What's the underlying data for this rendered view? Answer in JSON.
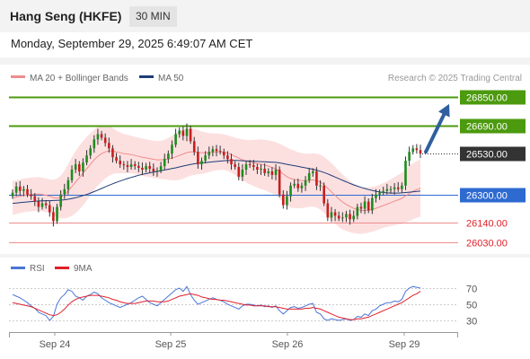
{
  "header": {
    "title": "Hang Seng (HKFE)",
    "timeframe": "30 MIN"
  },
  "datetime": "Monday, September 29, 2025 6:49:07 AM CET",
  "legend": {
    "ma20": "MA 20 + Bollinger Bands",
    "ma50": "MA 50",
    "copyright": "Research © 2025 Trading Central"
  },
  "rsi_legend": {
    "rsi": "RSI",
    "ma9": "9MA"
  },
  "colors": {
    "resistance": "#4c9a0e",
    "support": "#f08c8c",
    "pivot": "#2e6ad0",
    "last": "#333333",
    "candle_up": "#1e8c1e",
    "candle_down": "#c81e1e",
    "bollinger": "#fbd5d5",
    "ma50": "#1e3c78",
    "rsi": "#4a76d6",
    "rsi_ma": "#e0202a",
    "arrow": "#2f5f9e"
  },
  "chart_data": [
    {
      "type": "candlestick",
      "title": "Hang Seng (HKFE)",
      "x_labels": [
        "Sep 24",
        "Sep 25",
        "Sep 26",
        "Sep 29"
      ],
      "ylim": [
        25980,
        26900
      ],
      "levels": [
        {
          "value": 26850.0,
          "label": "26850.00",
          "kind": "resistance"
        },
        {
          "value": 26690.0,
          "label": "26690.00",
          "kind": "resistance"
        },
        {
          "value": 26530.0,
          "label": "26530.00",
          "kind": "last"
        },
        {
          "value": 26300.0,
          "label": "26300.00",
          "kind": "pivot"
        },
        {
          "value": 26140.0,
          "label": "26140.00",
          "kind": "support"
        },
        {
          "value": 26030.0,
          "label": "26030.00",
          "kind": "support"
        }
      ],
      "closes": [
        26310,
        26345,
        26320,
        26330,
        26300,
        26290,
        26260,
        26230,
        26250,
        26240,
        26200,
        26150,
        26230,
        26300,
        26330,
        26380,
        26440,
        26470,
        26430,
        26480,
        26520,
        26560,
        26610,
        26640,
        26620,
        26590,
        26560,
        26510,
        26490,
        26470,
        26465,
        26455,
        26470,
        26460,
        26450,
        26440,
        26460,
        26445,
        26430,
        26435,
        26460,
        26500,
        26530,
        26580,
        26640,
        26660,
        26630,
        26670,
        26600,
        26540,
        26470,
        26490,
        26520,
        26540,
        26555,
        26545,
        26540,
        26520,
        26500,
        26470,
        26455,
        26400,
        26440,
        26470,
        26465,
        26455,
        26440,
        26445,
        26420,
        26430,
        26410,
        26440,
        26300,
        26240,
        26290,
        26350,
        26360,
        26335,
        26350,
        26380,
        26420,
        26430,
        26350,
        26350,
        26250,
        26170,
        26200,
        26180,
        26165,
        26170,
        26190,
        26160,
        26180,
        26230,
        26220,
        26260,
        26210,
        26280,
        26300,
        26310,
        26320,
        26330,
        26330,
        26340,
        26330,
        26350,
        26490,
        26540,
        26560,
        26550,
        26530
      ],
      "ma20": [
        26280,
        26285,
        26290,
        26295,
        26298,
        26300,
        26302,
        26303,
        26300,
        26296,
        26290,
        26283,
        26280,
        26285,
        26300,
        26320,
        26345,
        26370,
        26395,
        26420,
        26445,
        26470,
        26495,
        26515,
        26530,
        26540,
        26545,
        26545,
        26540,
        26535,
        26530,
        26528,
        26525,
        26520,
        26515,
        26510,
        26506,
        26502,
        26498,
        26495,
        26495,
        26497,
        26500,
        26505,
        26512,
        26520,
        26528,
        26536,
        26540,
        26540,
        26538,
        26535,
        26535,
        26536,
        26538,
        26540,
        26540,
        26538,
        26533,
        26525,
        26515,
        26505,
        26495,
        26488,
        26482,
        26478,
        26474,
        26470,
        26466,
        26460,
        26452,
        26444,
        26430,
        26415,
        26400,
        26390,
        26385,
        26380,
        26378,
        26378,
        26380,
        26382,
        26378,
        26370,
        26355,
        26335,
        26315,
        26295,
        26275,
        26258,
        26244,
        26232,
        26222,
        26215,
        26210,
        26210,
        26212,
        26216,
        26222,
        26230,
        26238,
        26246,
        26254,
        26262,
        26270,
        26278,
        26292,
        26306,
        26318,
        26328,
        26336
      ],
      "ma50": [
        26250,
        26252,
        26254,
        26256,
        26258,
        26260,
        26262,
        26263,
        26264,
        26265,
        26265,
        26266,
        26267,
        26268,
        26270,
        26273,
        26277,
        26282,
        26288,
        26294,
        26300,
        26308,
        26316,
        26325,
        26334,
        26343,
        26352,
        26360,
        26368,
        26376,
        26383,
        26390,
        26396,
        26402,
        26408,
        26413,
        26418,
        26422,
        26426,
        26430,
        26434,
        26438,
        26442,
        26446,
        26450,
        26455,
        26460,
        26465,
        26469,
        26473,
        26476,
        26478,
        26480,
        26482,
        26484,
        26486,
        26488,
        26490,
        26491,
        26492,
        26492,
        26491,
        26490,
        26489,
        26488,
        26487,
        26486,
        26485,
        26484,
        26483,
        26482,
        26481,
        26478,
        26474,
        26470,
        26466,
        26462,
        26458,
        26454,
        26450,
        26446,
        26442,
        26437,
        26431,
        26424,
        26416,
        26407,
        26398,
        26389,
        26380,
        26371,
        26362,
        26354,
        26347,
        26340,
        26334,
        26328,
        26323,
        26318,
        26314,
        26311,
        26309,
        26308,
        26308,
        26308,
        26309,
        26311,
        26313,
        26315,
        26317,
        26319
      ],
      "bb_width": [
        95,
        95,
        95,
        95,
        95,
        95,
        95,
        95,
        95,
        95,
        95,
        100,
        110,
        120,
        135,
        150,
        165,
        175,
        180,
        182,
        180,
        175,
        170,
        165,
        160,
        150,
        140,
        130,
        120,
        115,
        110,
        108,
        105,
        105,
        105,
        105,
        105,
        105,
        105,
        105,
        108,
        112,
        118,
        125,
        132,
        138,
        140,
        138,
        135,
        130,
        125,
        120,
        115,
        110,
        106,
        104,
        102,
        100,
        100,
        102,
        105,
        110,
        115,
        120,
        125,
        130,
        135,
        140,
        142,
        145,
        148,
        150,
        155,
        160,
        165,
        165,
        162,
        158,
        155,
        152,
        150,
        150,
        152,
        155,
        158,
        160,
        162,
        160,
        158,
        155,
        150,
        145,
        140,
        136,
        132,
        130,
        128,
        126,
        125,
        125,
        126,
        128,
        132,
        136,
        140,
        145,
        150,
        155,
        158,
        160,
        162
      ]
    },
    {
      "type": "line",
      "title": "RSI",
      "ylim": [
        20,
        80
      ],
      "y_ticks": [
        "70",
        "50",
        "30"
      ],
      "rsi": [
        62,
        60,
        58,
        55,
        52,
        48,
        45,
        40,
        38,
        36,
        30,
        35,
        50,
        58,
        62,
        68,
        66,
        60,
        58,
        55,
        60,
        62,
        65,
        63,
        58,
        55,
        52,
        50,
        48,
        46,
        48,
        50,
        52,
        55,
        58,
        60,
        56,
        52,
        50,
        48,
        52,
        56,
        60,
        64,
        68,
        70,
        66,
        72,
        62,
        55,
        50,
        52,
        54,
        56,
        58,
        56,
        55,
        53,
        50,
        48,
        46,
        44,
        48,
        50,
        50,
        49,
        48,
        49,
        47,
        48,
        46,
        48,
        42,
        38,
        42,
        46,
        47,
        45,
        46,
        48,
        50,
        51,
        40,
        38,
        32,
        30,
        32,
        31,
        30,
        31,
        32,
        30,
        31,
        35,
        34,
        38,
        36,
        42,
        44,
        48,
        50,
        52,
        52,
        54,
        53,
        56,
        66,
        70,
        72,
        71,
        70
      ],
      "ma9": [
        52,
        51,
        50,
        49,
        48,
        47,
        45,
        43,
        41,
        39,
        37,
        36,
        37,
        40,
        44,
        49,
        53,
        56,
        58,
        59,
        60,
        61,
        61,
        61,
        60,
        59,
        58,
        56,
        55,
        53,
        52,
        51,
        51,
        51,
        52,
        53,
        54,
        54,
        54,
        53,
        53,
        53,
        54,
        56,
        58,
        60,
        61,
        62,
        63,
        62,
        61,
        59,
        58,
        57,
        56,
        56,
        55,
        55,
        54,
        53,
        52,
        51,
        50,
        49,
        49,
        48,
        48,
        48,
        48,
        47,
        47,
        47,
        46,
        45,
        44,
        44,
        44,
        44,
        44,
        45,
        45,
        46,
        45,
        44,
        42,
        40,
        38,
        36,
        34,
        33,
        32,
        31,
        31,
        32,
        32,
        33,
        34,
        36,
        38,
        40,
        42,
        44,
        46,
        48,
        50,
        52,
        55,
        58,
        61,
        63,
        66
      ]
    }
  ]
}
